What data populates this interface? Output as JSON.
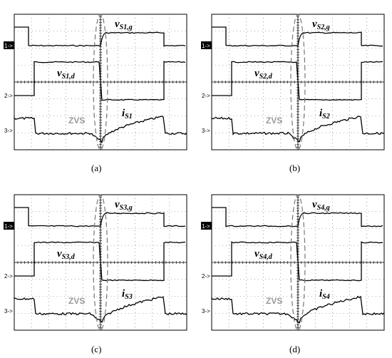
{
  "chart_data": [
    {
      "type": "line",
      "caption": "(a)",
      "grid": true,
      "channel_markers": [
        "1->",
        "2->",
        "3->"
      ],
      "annotation": "ZVS",
      "series": [
        {
          "name": "v",
          "sub": "S1,g",
          "x": [
            0,
            0.45,
            0.47,
            1
          ],
          "values": [
            0.64,
            0.64,
            0.8,
            0.8
          ]
        },
        {
          "name": "v",
          "sub": "S1,d",
          "x": [
            0,
            0.45,
            0.48,
            1
          ],
          "values": [
            0.58,
            0.58,
            0.0,
            0.0
          ]
        },
        {
          "name": "i",
          "sub": "S1",
          "x": [
            0,
            0.3,
            0.45,
            0.48,
            0.75,
            1
          ],
          "values": [
            0.12,
            0.1,
            0.02,
            -0.05,
            0.15,
            0.1
          ]
        }
      ]
    },
    {
      "type": "line",
      "caption": "(b)",
      "grid": true,
      "channel_markers": [
        "1->",
        "2->",
        "3->"
      ],
      "annotation": "ZVS",
      "series": [
        {
          "name": "v",
          "sub": "S2,g"
        },
        {
          "name": "v",
          "sub": "S2,d"
        },
        {
          "name": "i",
          "sub": "S2"
        }
      ]
    },
    {
      "type": "line",
      "caption": "(c)",
      "grid": true,
      "channel_markers": [
        "1->",
        "2->",
        "3->"
      ],
      "annotation": "ZVS",
      "series": [
        {
          "name": "v",
          "sub": "S3,g"
        },
        {
          "name": "v",
          "sub": "S3,d"
        },
        {
          "name": "i",
          "sub": "S3"
        }
      ]
    },
    {
      "type": "line",
      "caption": "(d)",
      "grid": true,
      "channel_markers": [
        "1->",
        "2->",
        "3->"
      ],
      "annotation": "ZVS",
      "series": [
        {
          "name": "v",
          "sub": "S4,g"
        },
        {
          "name": "v",
          "sub": "S4,d"
        },
        {
          "name": "i",
          "sub": "S4"
        }
      ]
    }
  ]
}
